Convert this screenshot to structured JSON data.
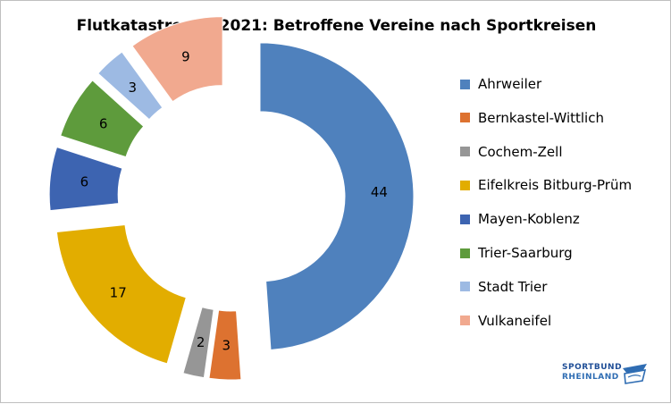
{
  "chart_data": {
    "type": "pie",
    "title": "Flutkatastrophe 2021: Betroffene Vereine nach Sportkreisen",
    "categories": [
      "Ahrweiler",
      "Bernkastel-Wittlich",
      "Cochem-Zell",
      "Eifelkreis Bitburg-Prüm",
      "Mayen-Koblenz",
      "Trier-Saarburg",
      "Stadt Trier",
      "Vulkaneifel"
    ],
    "values": [
      44,
      3,
      2,
      17,
      6,
      6,
      3,
      9
    ],
    "colors": [
      "#4f81bd",
      "#dd7230",
      "#969696",
      "#e2ad00",
      "#3d64b1",
      "#5e9b3c",
      "#9dbae3",
      "#f1a98f"
    ],
    "style": "doughnut, exploded slices",
    "legend_position": "right"
  },
  "logo": {
    "line1": "SPORTBUND",
    "line2": "RHEINLAND"
  }
}
